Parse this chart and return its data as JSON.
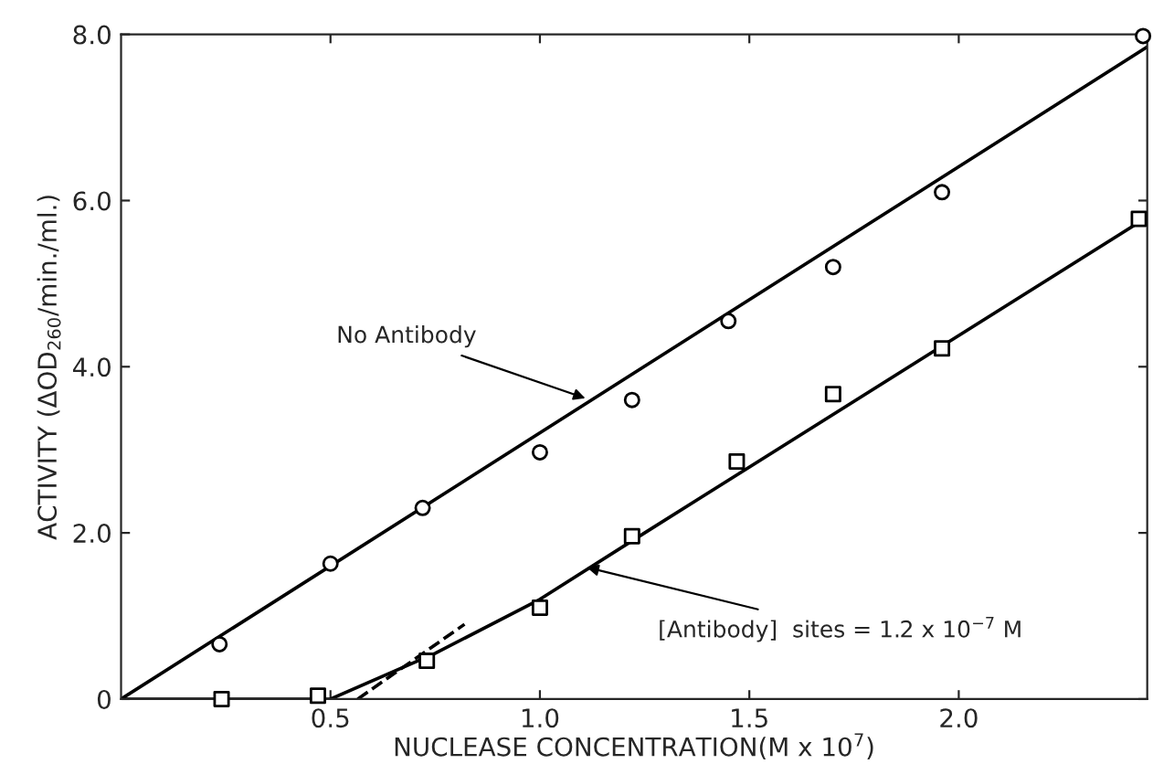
{
  "chart_data": {
    "type": "scatter",
    "xlabel": "NUCLEASE CONCENTRATION(M x 10$^{7}$)",
    "ylabel": "ACTIVITY (ΔOD$_{260}$/min./ml.)",
    "xlim": [
      0,
      2.45
    ],
    "ylim": [
      0,
      8
    ],
    "xticks": [
      0.5,
      {
        "value": 1,
        "label": "1.0"
      },
      1.5,
      {
        "value": 2,
        "label": "2.0"
      }
    ],
    "yticks": [
      0,
      {
        "value": 2,
        "label": "2.0"
      },
      {
        "value": 4,
        "label": "4.0"
      },
      {
        "value": 6,
        "label": "6.0"
      },
      {
        "value": 8,
        "label": "8.0"
      }
    ],
    "grid": false,
    "legend": false,
    "series": [
      {
        "marker": "circle",
        "color": "#000000",
        "x": [
          0.235,
          0.5,
          0.72,
          1.0,
          1.22,
          1.45,
          1.7,
          1.96,
          2.44
        ],
        "values": [
          0.66,
          1.63,
          2.3,
          2.97,
          3.6,
          4.55,
          5.2,
          6.1,
          7.98
        ]
      },
      {
        "marker": "square",
        "color": "#000000",
        "x": [
          0.24,
          0.47,
          0.73,
          1.0,
          1.22,
          1.47,
          1.7,
          1.96,
          2.43
        ],
        "values": [
          0,
          0.04,
          0.46,
          1.1,
          1.96,
          2.86,
          3.67,
          4.22,
          5.78
        ]
      },
      {
        "type": "line",
        "marker": "none",
        "line_style": "solid",
        "color": "#000000",
        "x": [
          0,
          2.45
        ],
        "values": [
          0,
          7.85
        ]
      },
      {
        "type": "line",
        "marker": "none",
        "line_style": "solid",
        "color": "#000000",
        "x": [
          0,
          0.5,
          0.75,
          1.0,
          1.25,
          2.45
        ],
        "values": [
          0,
          0,
          0.55,
          1.2,
          2.0,
          5.8
        ]
      },
      {
        "type": "line",
        "marker": "none",
        "line_style": "dashed",
        "color": "#000000",
        "x": [
          0.565,
          0.82
        ],
        "values": [
          0,
          0.9
        ]
      }
    ],
    "annotations": [
      {
        "text": "No Antibody",
        "x": 1.12,
        "y": 3.6
      },
      {
        "text": "[Antibody]  sites = 1.2 x 10$^{−7}$ M",
        "x": 1.1,
        "y": 1.6
      }
    ]
  }
}
